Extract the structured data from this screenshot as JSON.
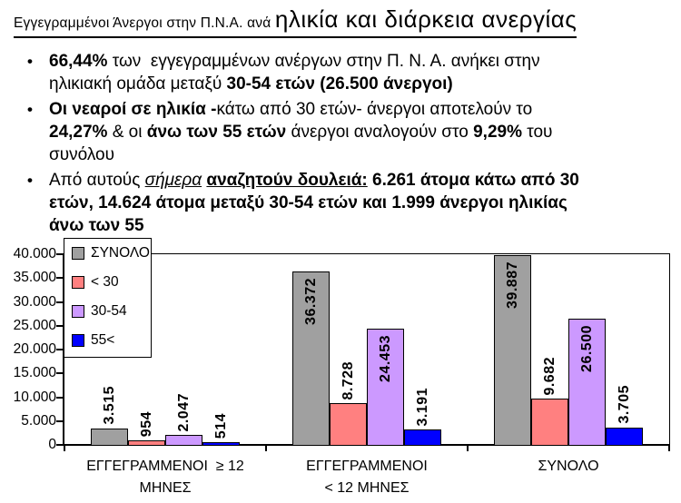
{
  "title": {
    "prefix": "Εγγεγραμμένοι Άνεργοι στην Π.Ν.Α. ανά ",
    "main": "ηλικία και διάρκεια ανεργίας"
  },
  "bullets": [
    {
      "segments": [
        {
          "text": "66,44%",
          "bold": true
        },
        {
          "text": " των  εγγεγραμμένων ανέργων στην Π. Ν. Α. ανήκει στην\nηλικιακή ομάδα μεταξύ "
        },
        {
          "text": "30-54 ετών (26.500 άνεργοι)",
          "bold": true
        }
      ]
    },
    {
      "segments": [
        {
          "text": "Οι νεαροί σε ηλικία -",
          "bold": true
        },
        {
          "text": "κάτω από 30 ετών- άνεργοι αποτελούν το\n"
        },
        {
          "text": "24,27%",
          "bold": true
        },
        {
          "text": " & οι "
        },
        {
          "text": "άνω των 55 ετών",
          "bold": true
        },
        {
          "text": " άνεργοι αναλογούν στο "
        },
        {
          "text": "9,29%",
          "bold": true
        },
        {
          "text": " του\nσυνόλου"
        }
      ]
    },
    {
      "segments": [
        {
          "text": "Από αυτούς "
        },
        {
          "text": "σήμερα",
          "italic": true,
          "underline": true
        },
        {
          "text": " "
        },
        {
          "text": "αναζητούν δουλειά:",
          "bold": true,
          "underline": true
        },
        {
          "text": " 6.261 άτομα κάτω από 30\nετών, 14.624 άτομα μεταξύ 30-54 ετών και 1.999 άνεργοι ηλικίας\nάνω των 55",
          "bold": true
        }
      ]
    }
  ],
  "chart_data": {
    "type": "bar",
    "categories": [
      "ΕΓΓΕΓΡΑΜΜΕΝΟΙ ≥ 12 ΜΗΝΕΣ",
      "ΕΓΓΕΓΡΑΜΜΕΝΟΙ < 12 ΜΗΝΕΣ",
      "ΣΥΝΟΛΟ"
    ],
    "category_lines": [
      [
        "ΕΓΓΕΓΡΑΜΜΕΝΟΙ  ≥ 12",
        "ΜΗΝΕΣ"
      ],
      [
        "ΕΓΓΕΓΡΑΜΜΕΝΟΙ",
        "< 12 ΜΗΝΕΣ"
      ],
      [
        "ΣΥΝΟΛΟ"
      ]
    ],
    "series": [
      {
        "name": "ΣΥΝΟΛΟ",
        "color": "#A0A0A0",
        "values": [
          3515,
          36372,
          39887
        ],
        "value_labels": [
          "3.515",
          "36.372",
          "39.887"
        ]
      },
      {
        "name": "< 30",
        "color": "#FF8080",
        "values": [
          954,
          8728,
          9682
        ],
        "value_labels": [
          "954",
          "8.728",
          "9.682"
        ]
      },
      {
        "name": "30-54",
        "color": "#CC99FF",
        "values": [
          2047,
          24453,
          26500
        ],
        "value_labels": [
          "2.047",
          "24.453",
          "26.500"
        ]
      },
      {
        "name": "55<",
        "color": "#0000FF",
        "values": [
          514,
          3191,
          3705
        ],
        "value_labels": [
          "514",
          "3.191",
          "3.705"
        ]
      }
    ],
    "ylim": [
      0,
      40000
    ],
    "y_ticks": [
      "0",
      "5.000",
      "10.000",
      "15.000",
      "20.000",
      "25.000",
      "30.000",
      "35.000",
      "40.000"
    ],
    "grid": false,
    "legend_position": "top-left-inside",
    "bar_border_color": "#000000",
    "label_color": "#000000"
  }
}
